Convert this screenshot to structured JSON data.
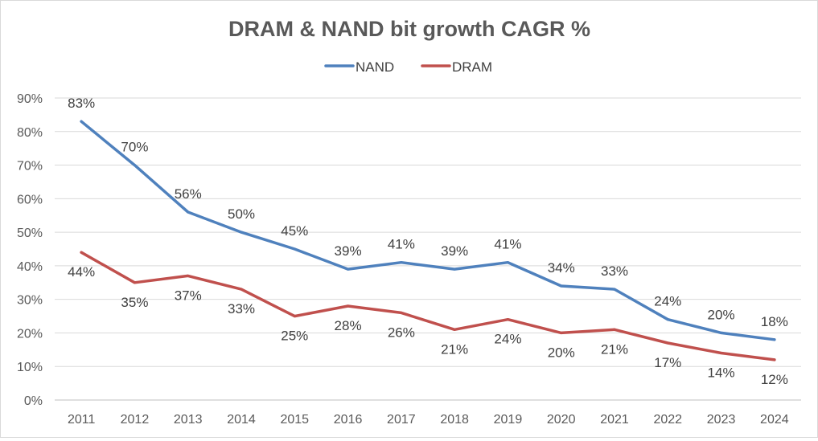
{
  "chart_data": {
    "type": "line",
    "title": "DRAM & NAND bit growth CAGR %",
    "xlabel": "",
    "ylabel": "",
    "categories": [
      "2011",
      "2012",
      "2013",
      "2014",
      "2015",
      "2016",
      "2017",
      "2018",
      "2019",
      "2020",
      "2021",
      "2022",
      "2023",
      "2024"
    ],
    "ylim": [
      0,
      90
    ],
    "yticks": [
      "0%",
      "10%",
      "20%",
      "30%",
      "40%",
      "50%",
      "60%",
      "70%",
      "80%",
      "90%"
    ],
    "grid": true,
    "legend_position": "top",
    "series": [
      {
        "name": "NAND",
        "color": "#4f81bd",
        "values": [
          83,
          70,
          56,
          50,
          45,
          39,
          41,
          39,
          41,
          34,
          33,
          24,
          20,
          18
        ],
        "labels": [
          "83%",
          "70%",
          "56%",
          "50%",
          "45%",
          "39%",
          "41%",
          "39%",
          "41%",
          "34%",
          "33%",
          "24%",
          "20%",
          "18%"
        ]
      },
      {
        "name": "DRAM",
        "color": "#c0504d",
        "values": [
          44,
          35,
          37,
          33,
          25,
          28,
          26,
          21,
          24,
          20,
          21,
          17,
          14,
          12
        ],
        "labels": [
          "44%",
          "35%",
          "37%",
          "33%",
          "25%",
          "28%",
          "26%",
          "21%",
          "24%",
          "20%",
          "21%",
          "17%",
          "14%",
          "12%"
        ]
      }
    ]
  }
}
